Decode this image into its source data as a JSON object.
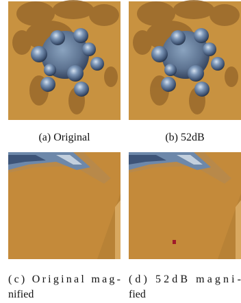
{
  "panels": [
    {
      "caption_lines": [
        "(a)  Original"
      ]
    },
    {
      "caption_lines": [
        "(b)  52dB"
      ]
    },
    {
      "caption_lines": [
        "(c) Original mag-",
        "nified"
      ]
    },
    {
      "caption_lines": [
        "(d) 52dB magni-",
        "fied"
      ]
    }
  ]
}
